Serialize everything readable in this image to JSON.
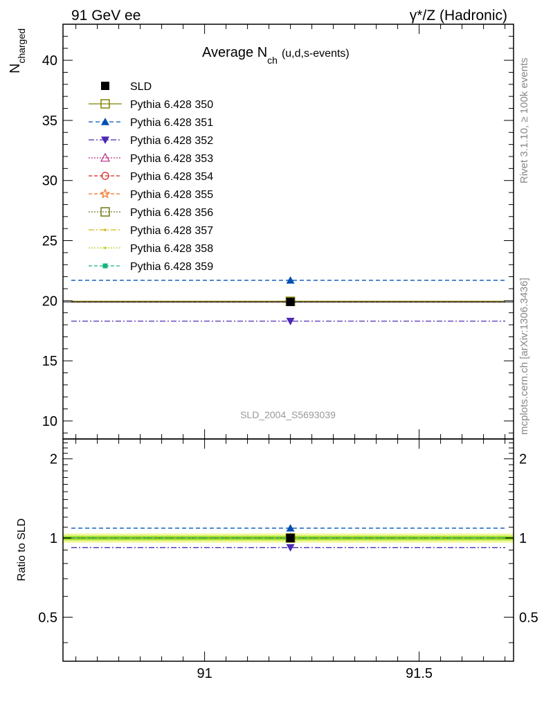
{
  "header": {
    "left": "91 GeV ee",
    "right": "γ*/Z (Hadronic)"
  },
  "side_labels": {
    "rivet": "Rivet 3.1.10, ≥ 100k events",
    "mcplots": "mcplots.cern.ch [arXiv:1306.3436]"
  },
  "colors": {
    "ratio_band_inner": "#9ee52e",
    "ratio_band_outer": "#f2f79a"
  },
  "chart_data": [
    {
      "type": "scatter",
      "title": "Average N",
      "title_sub": "ch",
      "title_suffix": "(u,d,s-events)",
      "ylabel": "N",
      "ylabel_sub": "charged",
      "watermark": "SLD_2004_S5693039",
      "xlim": [
        90.67,
        91.72
      ],
      "ylim": [
        8.5,
        43
      ],
      "yticks": [
        10,
        15,
        20,
        25,
        30,
        35,
        40
      ],
      "ytick_labels": [
        "10",
        "15",
        "20",
        "25",
        "30",
        "35",
        "40"
      ],
      "legend_position": "top-left",
      "series": [
        {
          "name": "SLD",
          "color": "#000000",
          "marker": "filled-square",
          "dash": "",
          "x": [
            91.2
          ],
          "y": [
            19.9
          ],
          "is_data": true
        },
        {
          "name": "Pythia 6.428 350",
          "color": "#808000",
          "marker": "open-square",
          "dash": "",
          "x": [
            91.2
          ],
          "y": [
            19.95
          ]
        },
        {
          "name": "Pythia 6.428 351",
          "color": "#0050b4",
          "marker": "filled-triangle-up",
          "dash": "6,4",
          "x": [
            91.2
          ],
          "y": [
            21.7
          ]
        },
        {
          "name": "Pythia 6.428 352",
          "color": "#4b28b4",
          "marker": "filled-triangle-down",
          "dash": "8,3,2,3",
          "x": [
            91.2
          ],
          "y": [
            18.3
          ]
        },
        {
          "name": "Pythia 6.428 353",
          "color": "#b4287d",
          "marker": "open-triangle-up",
          "dash": "2,2",
          "x": [
            91.2
          ],
          "y": [
            19.9
          ]
        },
        {
          "name": "Pythia 6.428 354",
          "color": "#dc1e1e",
          "marker": "open-circle",
          "dash": "5,3",
          "x": [
            91.2
          ],
          "y": [
            19.9
          ]
        },
        {
          "name": "Pythia 6.428 355",
          "color": "#f06e1e",
          "marker": "open-star",
          "dash": "5,3",
          "x": [
            91.2
          ],
          "y": [
            19.9
          ]
        },
        {
          "name": "Pythia 6.428 356",
          "color": "#6e7814",
          "marker": "open-square",
          "dash": "2,2",
          "x": [
            91.2
          ],
          "y": [
            19.95
          ]
        },
        {
          "name": "Pythia 6.428 357",
          "color": "#d2b414",
          "marker": "small-dot",
          "dash": "8,3,2,3",
          "x": [
            91.2
          ],
          "y": [
            19.95
          ]
        },
        {
          "name": "Pythia 6.428 358",
          "color": "#b4d21e",
          "marker": "small-dot",
          "dash": "2,2",
          "x": [
            91.2
          ],
          "y": [
            19.95
          ]
        },
        {
          "name": "Pythia 6.428 359",
          "color": "#14b482",
          "marker": "filled-square-small",
          "dash": "5,3",
          "x": [
            91.2
          ],
          "y": [
            19.95
          ]
        }
      ]
    },
    {
      "type": "scatter",
      "title": "",
      "ylabel": "Ratio to SLD",
      "xlabel": "",
      "xlim": [
        90.67,
        91.72
      ],
      "ylim": [
        0.34,
        2.38
      ],
      "log_y": true,
      "xticks": [
        91,
        91.5
      ],
      "xtick_labels": [
        "91",
        "91.5"
      ],
      "yticks": [
        0.5,
        1,
        2
      ],
      "ytick_labels": [
        "0.5",
        "1",
        "2"
      ],
      "series": [
        {
          "name": "SLD",
          "color": "#000000",
          "x": [
            91.2
          ],
          "y": [
            1.0
          ]
        },
        {
          "name": "Pythia 6.428 350",
          "color": "#808000",
          "x": [
            91.2
          ],
          "y": [
            1.0
          ]
        },
        {
          "name": "Pythia 6.428 351",
          "color": "#0050b4",
          "x": [
            91.2
          ],
          "y": [
            1.09
          ]
        },
        {
          "name": "Pythia 6.428 352",
          "color": "#4b28b4",
          "x": [
            91.2
          ],
          "y": [
            0.92
          ]
        },
        {
          "name": "Pythia 6.428 353",
          "color": "#b4287d",
          "x": [
            91.2
          ],
          "y": [
            1.0
          ]
        },
        {
          "name": "Pythia 6.428 354",
          "color": "#dc1e1e",
          "x": [
            91.2
          ],
          "y": [
            1.0
          ]
        },
        {
          "name": "Pythia 6.428 355",
          "color": "#f06e1e",
          "x": [
            91.2
          ],
          "y": [
            1.0
          ]
        },
        {
          "name": "Pythia 6.428 356",
          "color": "#6e7814",
          "x": [
            91.2
          ],
          "y": [
            1.0
          ]
        },
        {
          "name": "Pythia 6.428 357",
          "color": "#d2b414",
          "x": [
            91.2
          ],
          "y": [
            1.0
          ]
        },
        {
          "name": "Pythia 6.428 358",
          "color": "#b4d21e",
          "x": [
            91.2
          ],
          "y": [
            1.0
          ]
        },
        {
          "name": "Pythia 6.428 359",
          "color": "#14b482",
          "x": [
            91.2
          ],
          "y": [
            1.0
          ]
        }
      ],
      "band": {
        "inner": [
          0.98,
          1.02
        ],
        "outer": [
          0.96,
          1.04
        ]
      }
    }
  ]
}
